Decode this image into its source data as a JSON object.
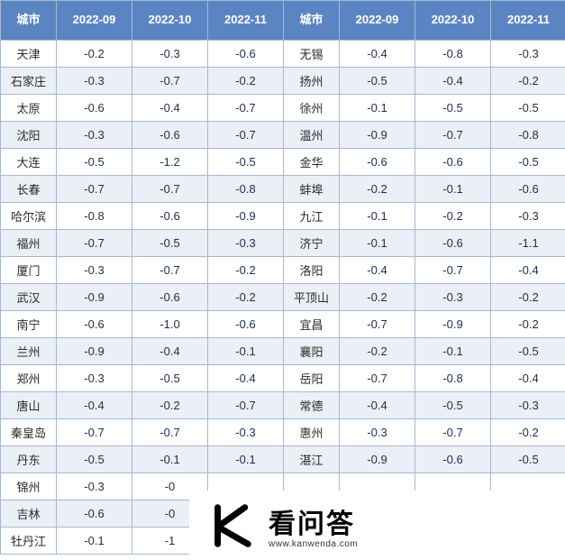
{
  "headers": {
    "city": "城市",
    "d1": "2022-09",
    "d2": "2022-10",
    "d3": "2022-11"
  },
  "rows": [
    {
      "c1": "天津",
      "v1": "-0.2",
      "v2": "-0.3",
      "v3": "-0.6",
      "c2": "无锡",
      "w1": "-0.4",
      "w2": "-0.8",
      "w3": "-0.3"
    },
    {
      "c1": "石家庄",
      "v1": "-0.3",
      "v2": "-0.7",
      "v3": "-0.2",
      "c2": "扬州",
      "w1": "-0.5",
      "w2": "-0.4",
      "w3": "-0.2"
    },
    {
      "c1": "太原",
      "v1": "-0.6",
      "v2": "-0.4",
      "v3": "-0.7",
      "c2": "徐州",
      "w1": "-0.1",
      "w2": "-0.5",
      "w3": "-0.5"
    },
    {
      "c1": "沈阳",
      "v1": "-0.3",
      "v2": "-0.6",
      "v3": "-0.7",
      "c2": "温州",
      "w1": "-0.9",
      "w2": "-0.7",
      "w3": "-0.8"
    },
    {
      "c1": "大连",
      "v1": "-0.5",
      "v2": "-1.2",
      "v3": "-0.5",
      "c2": "金华",
      "w1": "-0.6",
      "w2": "-0.6",
      "w3": "-0.5"
    },
    {
      "c1": "长春",
      "v1": "-0.7",
      "v2": "-0.7",
      "v3": "-0.8",
      "c2": "蚌埠",
      "w1": "-0.2",
      "w2": "-0.1",
      "w3": "-0.6"
    },
    {
      "c1": "哈尔滨",
      "v1": "-0.8",
      "v2": "-0.6",
      "v3": "-0.9",
      "c2": "九江",
      "w1": "-0.1",
      "w2": "-0.2",
      "w3": "-0.3"
    },
    {
      "c1": "福州",
      "v1": "-0.7",
      "v2": "-0.5",
      "v3": "-0.3",
      "c2": "济宁",
      "w1": "-0.1",
      "w2": "-0.6",
      "w3": "-1.1"
    },
    {
      "c1": "厦门",
      "v1": "-0.3",
      "v2": "-0.7",
      "v3": "-0.2",
      "c2": "洛阳",
      "w1": "-0.4",
      "w2": "-0.7",
      "w3": "-0.4"
    },
    {
      "c1": "武汉",
      "v1": "-0.9",
      "v2": "-0.6",
      "v3": "-0.2",
      "c2": "平顶山",
      "w1": "-0.2",
      "w2": "-0.3",
      "w3": "-0.2"
    },
    {
      "c1": "南宁",
      "v1": "-0.6",
      "v2": "-1.0",
      "v3": "-0.6",
      "c2": "宜昌",
      "w1": "-0.7",
      "w2": "-0.9",
      "w3": "-0.2"
    },
    {
      "c1": "兰州",
      "v1": "-0.9",
      "v2": "-0.4",
      "v3": "-0.1",
      "c2": "襄阳",
      "w1": "-0.2",
      "w2": "-0.1",
      "w3": "-0.5"
    },
    {
      "c1": "郑州",
      "v1": "-0.3",
      "v2": "-0.5",
      "v3": "-0.4",
      "c2": "岳阳",
      "w1": "-0.7",
      "w2": "-0.8",
      "w3": "-0.4"
    },
    {
      "c1": "唐山",
      "v1": "-0.4",
      "v2": "-0.2",
      "v3": "-0.7",
      "c2": "常德",
      "w1": "-0.4",
      "w2": "-0.5",
      "w3": "-0.3"
    },
    {
      "c1": "秦皇岛",
      "v1": "-0.7",
      "v2": "-0.7",
      "v3": "-0.3",
      "c2": "惠州",
      "w1": "-0.3",
      "w2": "-0.7",
      "w3": "-0.2"
    },
    {
      "c1": "丹东",
      "v1": "-0.5",
      "v2": "-0.1",
      "v3": "-0.1",
      "c2": "湛江",
      "w1": "-0.9",
      "w2": "-0.6",
      "w3": "-0.5"
    },
    {
      "c1": "锦州",
      "v1": "-0.3",
      "v2": "-0",
      "v3": "",
      "c2": "",
      "w1": "",
      "w2": "",
      "w3": ""
    },
    {
      "c1": "吉林",
      "v1": "-0.6",
      "v2": "-0",
      "v3": "",
      "c2": "",
      "w1": "",
      "w2": "",
      "w3": ""
    },
    {
      "c1": "牡丹江",
      "v1": "-0.1",
      "v2": "-1",
      "v3": "",
      "c2": "",
      "w1": "",
      "w2": "",
      "w3": ""
    }
  ],
  "overlay": {
    "brand_text": "看问答",
    "brand_sub": "www.kanwenda.com",
    "logo_stroke": "#000000",
    "logo_bg": "#ffffff"
  },
  "style": {
    "header_bg": "#5b85c2",
    "header_fg": "#ffffff",
    "border_color": "#a6b8d4",
    "row_alt_bg": "#ebeff6",
    "text_color": "#1f2d4a"
  }
}
